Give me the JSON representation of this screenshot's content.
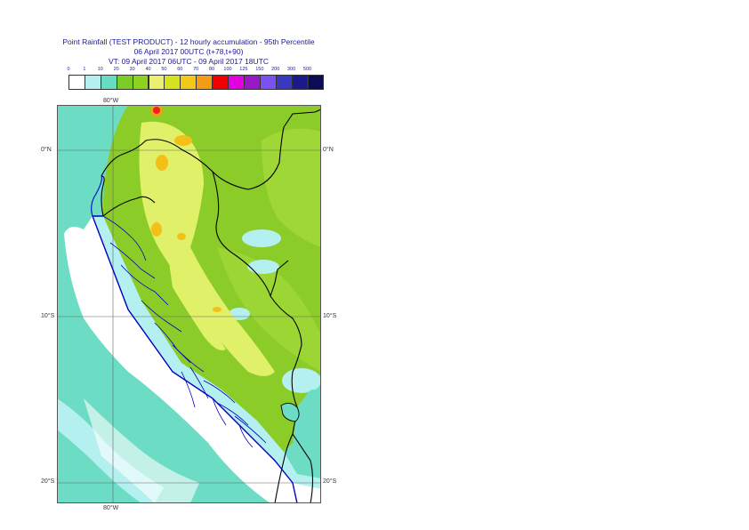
{
  "title": {
    "line1": "Point Rainfall (TEST PRODUCT) - 12 hourly accumulation - 95th Percentile",
    "line2": "06 April 2017 00UTC (t+78,t+90)",
    "line3": "VT: 09 April 2017 06UTC - 09 April 2017 18UTC"
  },
  "legend": {
    "thresholds": [
      "0",
      "1",
      "10",
      "20",
      "30",
      "40",
      "50",
      "60",
      "70",
      "80",
      "100",
      "125",
      "150",
      "200",
      "300",
      "500"
    ],
    "colors": [
      "#ffffff",
      "#b4f0f0",
      "#66dcc0",
      "#7ccc28",
      "#8cd21e",
      "#eaf070",
      "#d6e220",
      "#f4c818",
      "#f49c14",
      "#f00000",
      "#e000e0",
      "#9818c8",
      "#7a52f0",
      "#3838c0",
      "#1a1a8c",
      "#0c0c54"
    ]
  },
  "axes": {
    "lon_top": "80°W",
    "lon_bottom": "80°W",
    "lat_left": [
      "0°N",
      "10°S",
      "20°S"
    ],
    "lat_right": [
      "0°N",
      "10°S",
      "20°S"
    ]
  },
  "map": {
    "region": "Peru and surrounding area",
    "colors": {
      "sea": "#6cdcc4",
      "dry": "#ffffff",
      "light": "#b4f0f0",
      "green": "#8ccc28",
      "green_light": "#a6dc3c",
      "yellow": "#e0f068",
      "orange": "#f4c018",
      "red": "#f02020",
      "border": "#000000",
      "admin": "#0000c0",
      "grid": "#666666"
    }
  }
}
